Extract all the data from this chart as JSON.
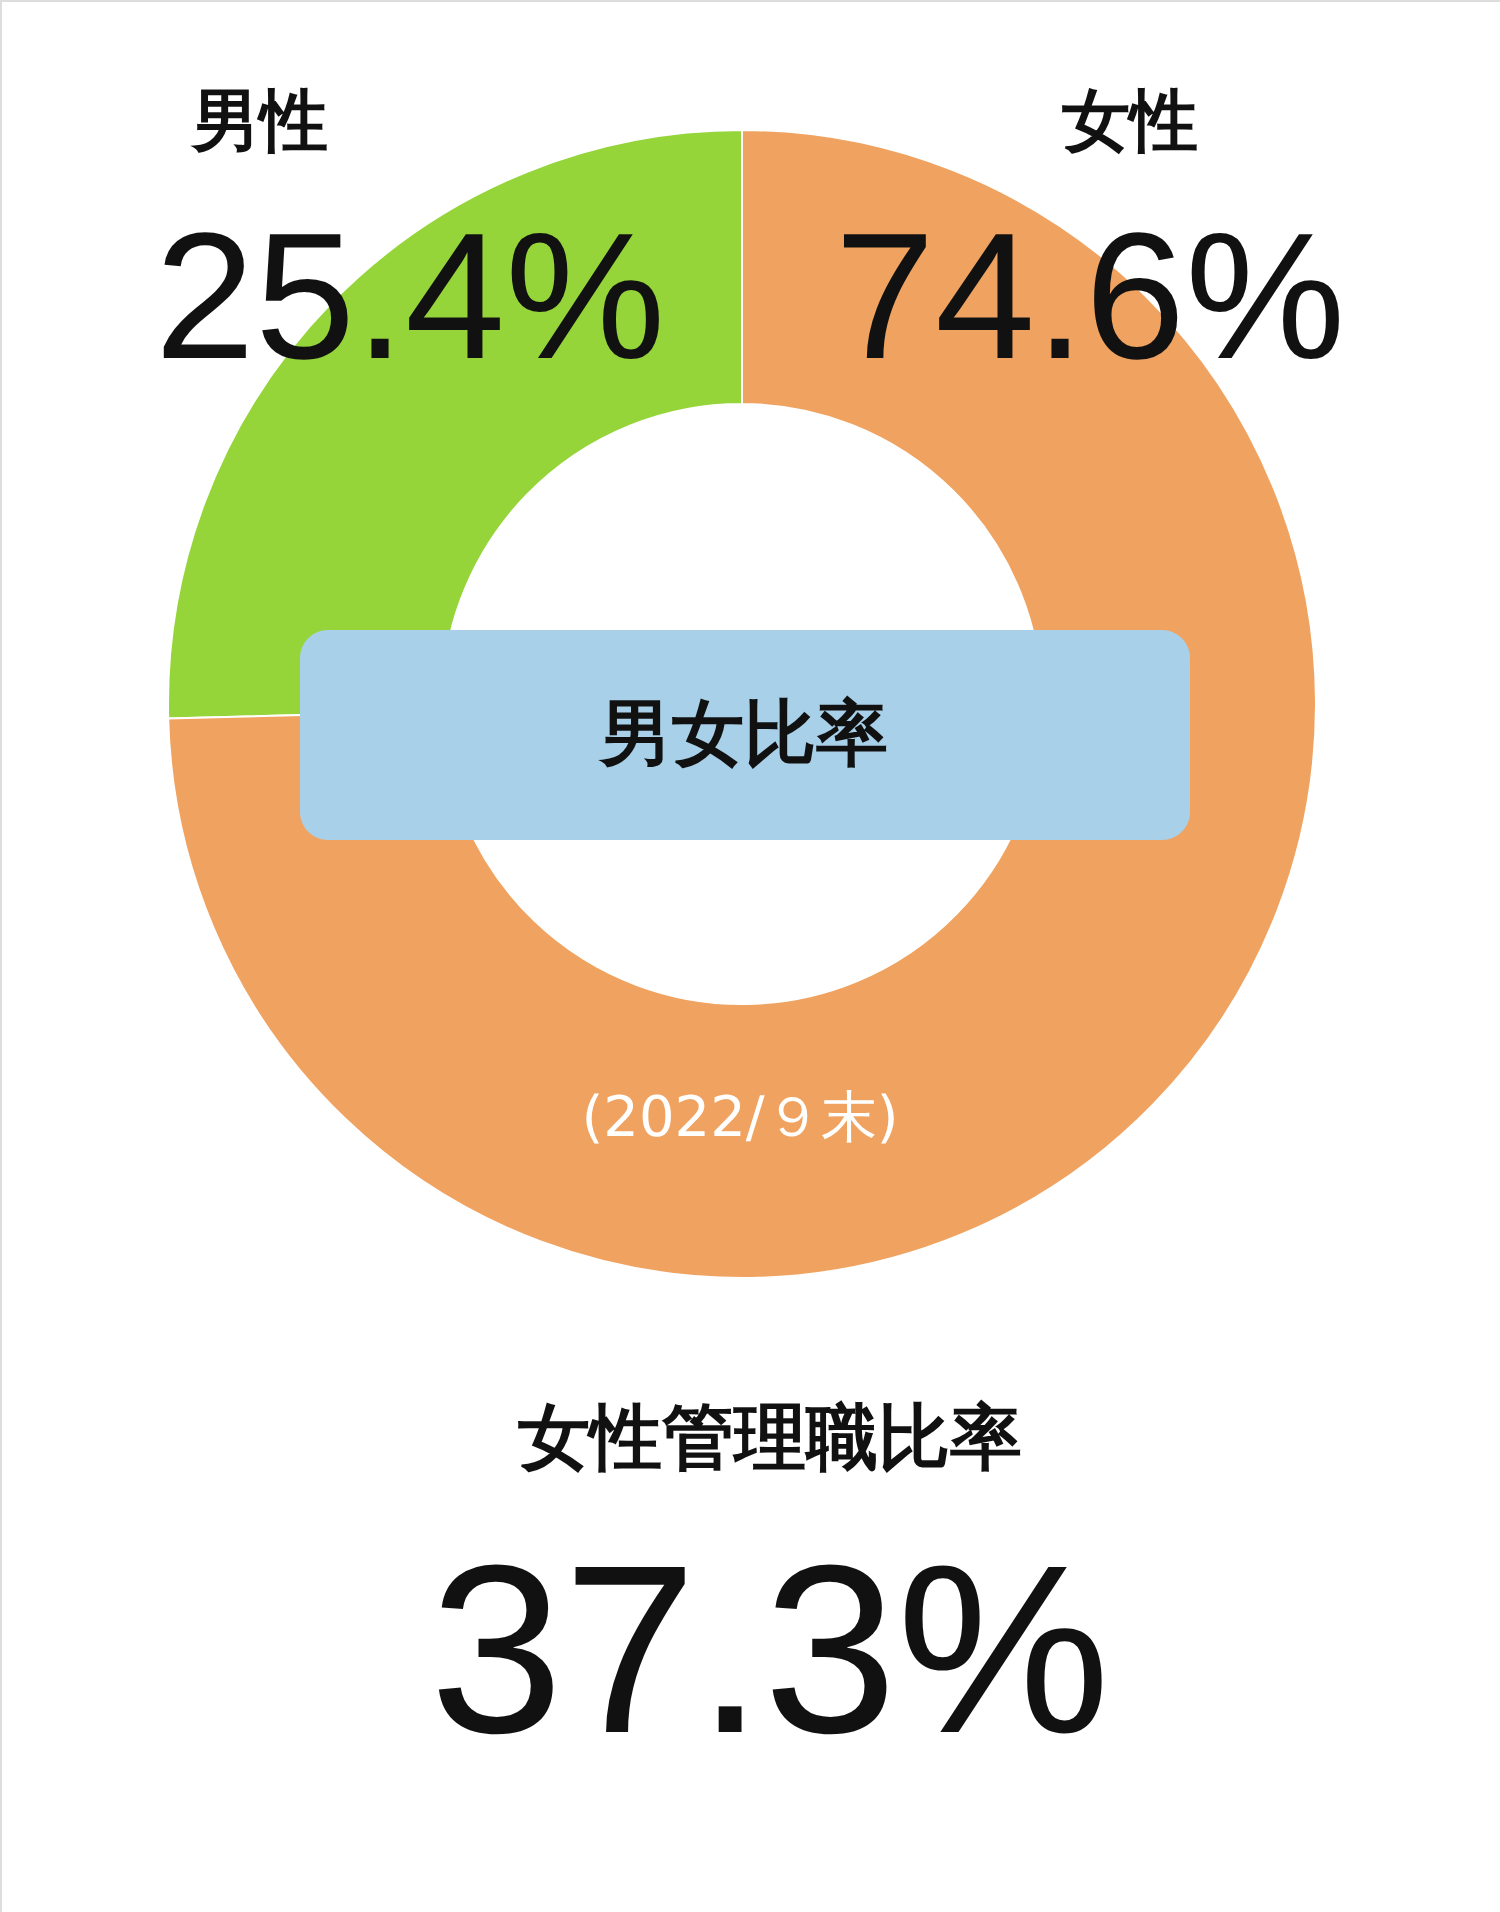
{
  "chart_data": {
    "type": "donut",
    "title": "男女比率",
    "subtitle": "(2022/９末)",
    "categories": [
      "男性",
      "女性"
    ],
    "values": [
      25.4,
      74.6
    ],
    "colors": [
      "#95d53a",
      "#f0a360"
    ],
    "value_labels": [
      "25.4%",
      "74.6%"
    ],
    "annotations": [
      "女性管理職比率",
      "37.3%"
    ]
  }
}
